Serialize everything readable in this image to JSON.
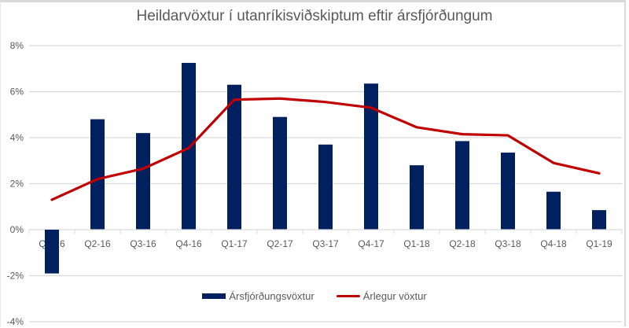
{
  "chart_data": {
    "type": "bar",
    "title": "Heildarvöxtur í utanríkisviðskiptum eftir ársfjórðungum",
    "xlabel": "",
    "ylabel": "",
    "categories": [
      "Q1-16",
      "Q2-16",
      "Q3-16",
      "Q4-16",
      "Q1-17",
      "Q2-17",
      "Q3-17",
      "Q4-17",
      "Q1-18",
      "Q2-18",
      "Q3-18",
      "Q4-18",
      "Q1-19"
    ],
    "series": [
      {
        "name": "Ársfjórðungsvöxtur",
        "type": "bar",
        "color": "#002060",
        "values": [
          -1.9,
          4.8,
          4.2,
          7.25,
          6.3,
          4.9,
          3.7,
          6.35,
          2.8,
          3.85,
          3.35,
          1.65,
          0.85
        ]
      },
      {
        "name": "Árlegur vöxtur",
        "type": "line",
        "color": "#c00000",
        "values": [
          1.3,
          2.2,
          2.65,
          3.55,
          5.65,
          5.7,
          5.55,
          5.3,
          4.45,
          4.15,
          4.1,
          2.9,
          2.45
        ]
      }
    ],
    "ylim": [
      -4,
      8
    ],
    "yticks": [
      8,
      6,
      4,
      2,
      0,
      -2,
      -4
    ],
    "ytick_labels": [
      "8%",
      "6%",
      "4%",
      "2%",
      "0%",
      "-2%",
      "-4%"
    ],
    "grid": true,
    "legend_position": "bottom"
  },
  "legend": {
    "items": [
      {
        "label": "Ársfjórðungsvöxtur",
        "color": "#002060",
        "kind": "bar"
      },
      {
        "label": "Árlegur vöxtur",
        "color": "#c00000",
        "kind": "line"
      }
    ]
  }
}
